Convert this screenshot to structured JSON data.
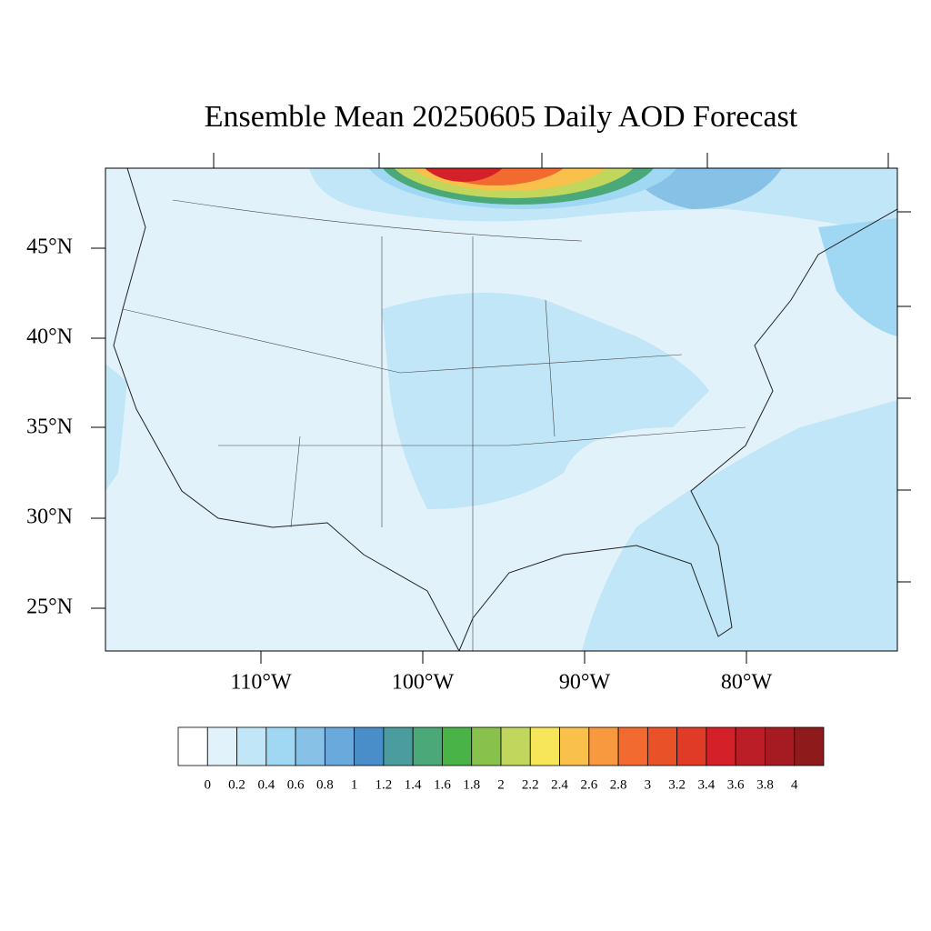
{
  "title": "Ensemble Mean 20250605 Daily AOD Forecast",
  "lat_labels": [
    "45°N",
    "40°N",
    "35°N",
    "30°N",
    "25°N"
  ],
  "lon_labels": [
    "110°W",
    "100°W",
    "90°W",
    "80°W"
  ],
  "colorbar": {
    "levels": [
      0,
      0.2,
      0.4,
      0.6,
      0.8,
      1,
      1.2,
      1.4,
      1.6,
      1.8,
      2,
      2.2,
      2.4,
      2.6,
      2.8,
      3,
      3.2,
      3.4,
      3.6,
      3.8,
      4
    ],
    "colors": [
      "#ffffff",
      "#e1f2fb",
      "#c0e6f7",
      "#a0d8f3",
      "#87c1e6",
      "#6aa9db",
      "#4a8ec9",
      "#4a9c9f",
      "#4aa879",
      "#49b348",
      "#88c24c",
      "#c1d65c",
      "#f7e65a",
      "#f9c04b",
      "#f8983f",
      "#f26a30",
      "#e95229",
      "#df3b27",
      "#d42129",
      "#bb1e26",
      "#a61b22",
      "#8e1a1c"
    ]
  }
}
